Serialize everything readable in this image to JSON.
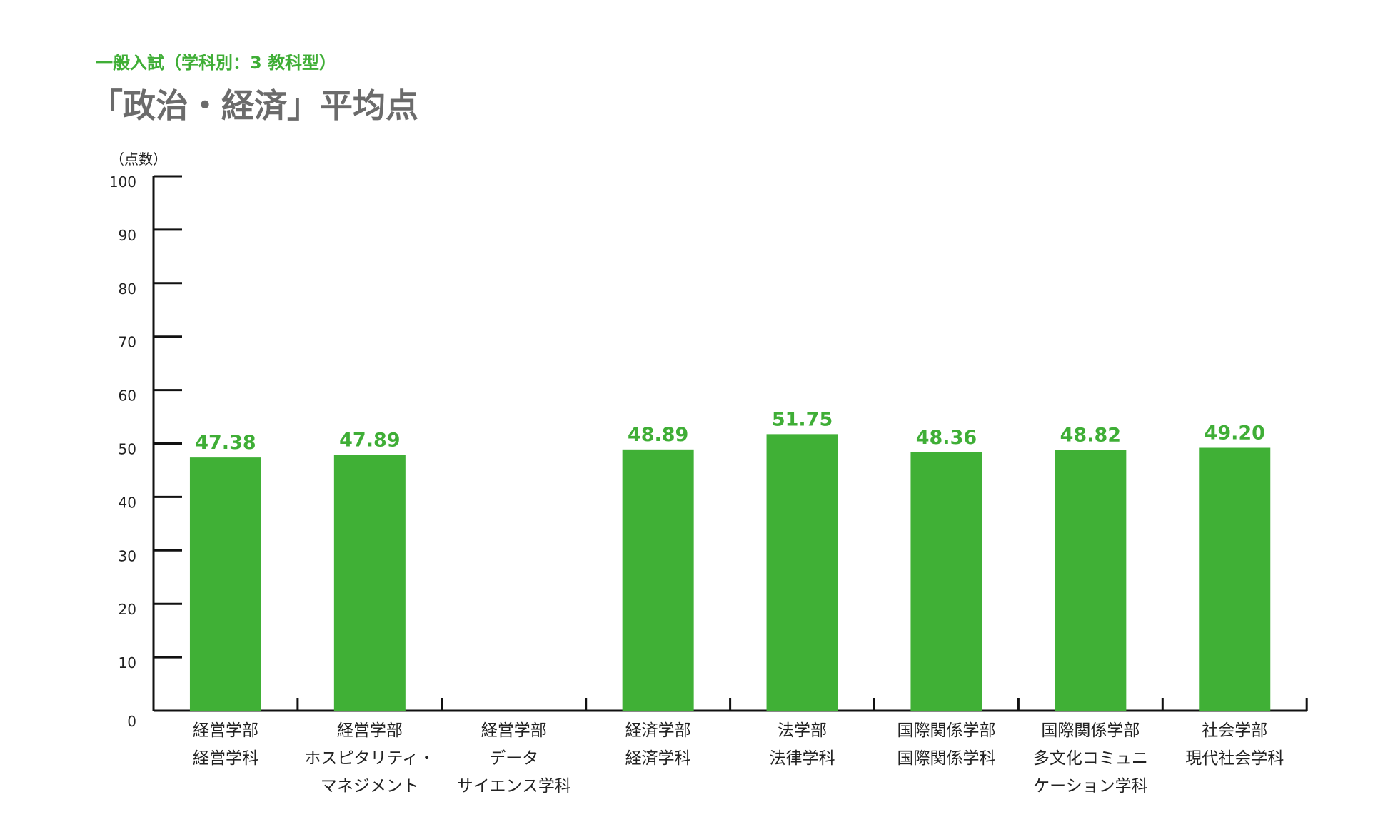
{
  "header": {
    "subtitle": "一般入試（学科別：3 教科型）",
    "title": "「政治・経済」平均点"
  },
  "colors": {
    "bar": "#40b036",
    "accent_text": "#3fae36",
    "title_text": "#6b6b6b",
    "axis": "#111111"
  },
  "chart_data": {
    "type": "bar",
    "title": "「政治・経済」平均点",
    "subtitle": "一般入試（学科別：3 教科型）",
    "ylabel": "（点数）",
    "xlabel": "",
    "ylim": [
      0,
      100
    ],
    "yticks": [
      0,
      10,
      20,
      30,
      40,
      50,
      60,
      70,
      80,
      90,
      100
    ],
    "grid": false,
    "legend": "none",
    "categories": [
      [
        "経営学部",
        "経営学科"
      ],
      [
        "経営学部",
        "ホスピタリティ・",
        "マネジメント"
      ],
      [
        "経営学部",
        "データ",
        "サイエンス学科"
      ],
      [
        "経済学部",
        "経済学科"
      ],
      [
        "法学部",
        "法律学科"
      ],
      [
        "国際関係学部",
        "国際関係学科"
      ],
      [
        "国際関係学部",
        "多文化コミュニ",
        "ケーション学科"
      ],
      [
        "社会学部",
        "現代社会学科"
      ]
    ],
    "values": [
      47.38,
      47.89,
      null,
      48.89,
      51.75,
      48.36,
      48.82,
      49.2
    ],
    "value_labels": [
      "47.38",
      "47.89",
      "",
      "48.89",
      "51.75",
      "48.36",
      "48.82",
      "49.20"
    ]
  }
}
